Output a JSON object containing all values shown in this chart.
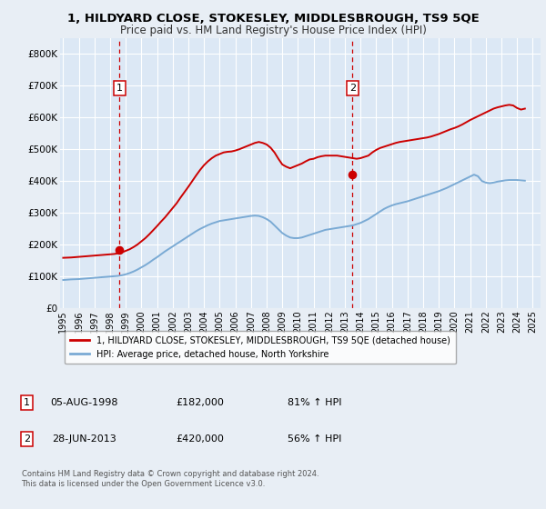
{
  "title": "1, HILDYARD CLOSE, STOKESLEY, MIDDLESBROUGH, TS9 5QE",
  "subtitle": "Price paid vs. HM Land Registry's House Price Index (HPI)",
  "title_fontsize": 9.5,
  "subtitle_fontsize": 8.5,
  "bg_color": "#e8eef5",
  "plot_bg_color": "#dce8f5",
  "grid_color": "#ffffff",
  "red_line_color": "#cc0000",
  "blue_line_color": "#7aaad4",
  "marker1_date": 1998.59,
  "marker1_value": 182000,
  "marker2_date": 2013.49,
  "marker2_value": 420000,
  "vline1_x": 1998.59,
  "vline2_x": 2013.49,
  "legend_label_red": "1, HILDYARD CLOSE, STOKESLEY, MIDDLESBROUGH, TS9 5QE (detached house)",
  "legend_label_blue": "HPI: Average price, detached house, North Yorkshire",
  "table_row1": [
    "1",
    "05-AUG-1998",
    "£182,000",
    "81% ↑ HPI"
  ],
  "table_row2": [
    "2",
    "28-JUN-2013",
    "£420,000",
    "56% ↑ HPI"
  ],
  "footer_text": "Contains HM Land Registry data © Crown copyright and database right 2024.\nThis data is licensed under the Open Government Licence v3.0.",
  "xlim": [
    1994.8,
    2025.5
  ],
  "ylim": [
    0,
    850000
  ],
  "yticks": [
    0,
    100000,
    200000,
    300000,
    400000,
    500000,
    600000,
    700000,
    800000
  ],
  "ytick_labels": [
    "£0",
    "£100K",
    "£200K",
    "£300K",
    "£400K",
    "£500K",
    "£600K",
    "£700K",
    "£800K"
  ],
  "xticks": [
    1995,
    1996,
    1997,
    1998,
    1999,
    2000,
    2001,
    2002,
    2003,
    2004,
    2005,
    2006,
    2007,
    2008,
    2009,
    2010,
    2011,
    2012,
    2013,
    2014,
    2015,
    2016,
    2017,
    2018,
    2019,
    2020,
    2021,
    2022,
    2023,
    2024,
    2025
  ],
  "red_x": [
    1995.0,
    1995.25,
    1995.5,
    1995.75,
    1996.0,
    1996.25,
    1996.5,
    1996.75,
    1997.0,
    1997.25,
    1997.5,
    1997.75,
    1998.0,
    1998.25,
    1998.5,
    1998.75,
    1999.0,
    1999.25,
    1999.5,
    1999.75,
    2000.0,
    2000.25,
    2000.5,
    2000.75,
    2001.0,
    2001.25,
    2001.5,
    2001.75,
    2002.0,
    2002.25,
    2002.5,
    2002.75,
    2003.0,
    2003.25,
    2003.5,
    2003.75,
    2004.0,
    2004.25,
    2004.5,
    2004.75,
    2005.0,
    2005.25,
    2005.5,
    2005.75,
    2006.0,
    2006.25,
    2006.5,
    2006.75,
    2007.0,
    2007.25,
    2007.5,
    2007.75,
    2008.0,
    2008.25,
    2008.5,
    2008.75,
    2009.0,
    2009.25,
    2009.5,
    2009.75,
    2010.0,
    2010.25,
    2010.5,
    2010.75,
    2011.0,
    2011.25,
    2011.5,
    2011.75,
    2012.0,
    2012.25,
    2012.5,
    2012.75,
    2013.0,
    2013.25,
    2013.5,
    2013.75,
    2014.0,
    2014.25,
    2014.5,
    2014.75,
    2015.0,
    2015.25,
    2015.5,
    2015.75,
    2016.0,
    2016.25,
    2016.5,
    2016.75,
    2017.0,
    2017.25,
    2017.5,
    2017.75,
    2018.0,
    2018.25,
    2018.5,
    2018.75,
    2019.0,
    2019.25,
    2019.5,
    2019.75,
    2020.0,
    2020.25,
    2020.5,
    2020.75,
    2021.0,
    2021.25,
    2021.5,
    2021.75,
    2022.0,
    2022.25,
    2022.5,
    2022.75,
    2023.0,
    2023.25,
    2023.5,
    2023.75,
    2024.0,
    2024.25,
    2024.5
  ],
  "red_y": [
    158000,
    158500,
    159000,
    160000,
    161000,
    162000,
    163000,
    164000,
    165000,
    166000,
    167000,
    168000,
    169000,
    170000,
    172000,
    175000,
    180000,
    185000,
    192000,
    200000,
    210000,
    220000,
    232000,
    245000,
    258000,
    272000,
    285000,
    300000,
    315000,
    330000,
    348000,
    365000,
    382000,
    400000,
    418000,
    435000,
    450000,
    462000,
    472000,
    480000,
    485000,
    490000,
    492000,
    493000,
    496000,
    500000,
    505000,
    510000,
    515000,
    520000,
    523000,
    520000,
    515000,
    505000,
    490000,
    470000,
    452000,
    445000,
    440000,
    445000,
    450000,
    455000,
    462000,
    468000,
    470000,
    475000,
    478000,
    480000,
    480000,
    480000,
    480000,
    478000,
    476000,
    474000,
    472000,
    470000,
    472000,
    476000,
    480000,
    490000,
    498000,
    504000,
    508000,
    512000,
    516000,
    520000,
    523000,
    525000,
    527000,
    529000,
    531000,
    533000,
    535000,
    537000,
    540000,
    544000,
    548000,
    553000,
    558000,
    563000,
    567000,
    572000,
    578000,
    585000,
    592000,
    598000,
    604000,
    610000,
    616000,
    622000,
    628000,
    632000,
    635000,
    638000,
    640000,
    638000,
    630000,
    625000,
    628000
  ],
  "blue_x": [
    1995.0,
    1995.25,
    1995.5,
    1995.75,
    1996.0,
    1996.25,
    1996.5,
    1996.75,
    1997.0,
    1997.25,
    1997.5,
    1997.75,
    1998.0,
    1998.25,
    1998.5,
    1998.75,
    1999.0,
    1999.25,
    1999.5,
    1999.75,
    2000.0,
    2000.25,
    2000.5,
    2000.75,
    2001.0,
    2001.25,
    2001.5,
    2001.75,
    2002.0,
    2002.25,
    2002.5,
    2002.75,
    2003.0,
    2003.25,
    2003.5,
    2003.75,
    2004.0,
    2004.25,
    2004.5,
    2004.75,
    2005.0,
    2005.25,
    2005.5,
    2005.75,
    2006.0,
    2006.25,
    2006.5,
    2006.75,
    2007.0,
    2007.25,
    2007.5,
    2007.75,
    2008.0,
    2008.25,
    2008.5,
    2008.75,
    2009.0,
    2009.25,
    2009.5,
    2009.75,
    2010.0,
    2010.25,
    2010.5,
    2010.75,
    2011.0,
    2011.25,
    2011.5,
    2011.75,
    2012.0,
    2012.25,
    2012.5,
    2012.75,
    2013.0,
    2013.25,
    2013.5,
    2013.75,
    2014.0,
    2014.25,
    2014.5,
    2014.75,
    2015.0,
    2015.25,
    2015.5,
    2015.75,
    2016.0,
    2016.25,
    2016.5,
    2016.75,
    2017.0,
    2017.25,
    2017.5,
    2017.75,
    2018.0,
    2018.25,
    2018.5,
    2018.75,
    2019.0,
    2019.25,
    2019.5,
    2019.75,
    2020.0,
    2020.25,
    2020.5,
    2020.75,
    2021.0,
    2021.25,
    2021.5,
    2021.75,
    2022.0,
    2022.25,
    2022.5,
    2022.75,
    2023.0,
    2023.25,
    2023.5,
    2023.75,
    2024.0,
    2024.25,
    2024.5
  ],
  "blue_y": [
    88000,
    89000,
    90000,
    90500,
    91000,
    92000,
    93000,
    94000,
    95000,
    96000,
    97000,
    98000,
    99000,
    100000,
    101000,
    103000,
    106000,
    110000,
    115000,
    121000,
    128000,
    135000,
    143000,
    152000,
    160000,
    169000,
    178000,
    186000,
    194000,
    202000,
    210000,
    218000,
    226000,
    234000,
    242000,
    249000,
    255000,
    261000,
    266000,
    270000,
    274000,
    276000,
    278000,
    280000,
    282000,
    284000,
    286000,
    288000,
    290000,
    291000,
    290000,
    286000,
    280000,
    272000,
    260000,
    248000,
    236000,
    228000,
    222000,
    220000,
    220000,
    222000,
    226000,
    230000,
    234000,
    238000,
    242000,
    246000,
    248000,
    250000,
    252000,
    254000,
    256000,
    258000,
    260000,
    264000,
    268000,
    274000,
    280000,
    288000,
    296000,
    304000,
    312000,
    318000,
    323000,
    327000,
    330000,
    333000,
    336000,
    340000,
    344000,
    348000,
    352000,
    356000,
    360000,
    364000,
    368000,
    373000,
    378000,
    384000,
    390000,
    396000,
    402000,
    408000,
    414000,
    420000,
    415000,
    400000,
    395000,
    393000,
    395000,
    398000,
    400000,
    402000,
    403000,
    403000,
    403000,
    402000,
    401000
  ]
}
